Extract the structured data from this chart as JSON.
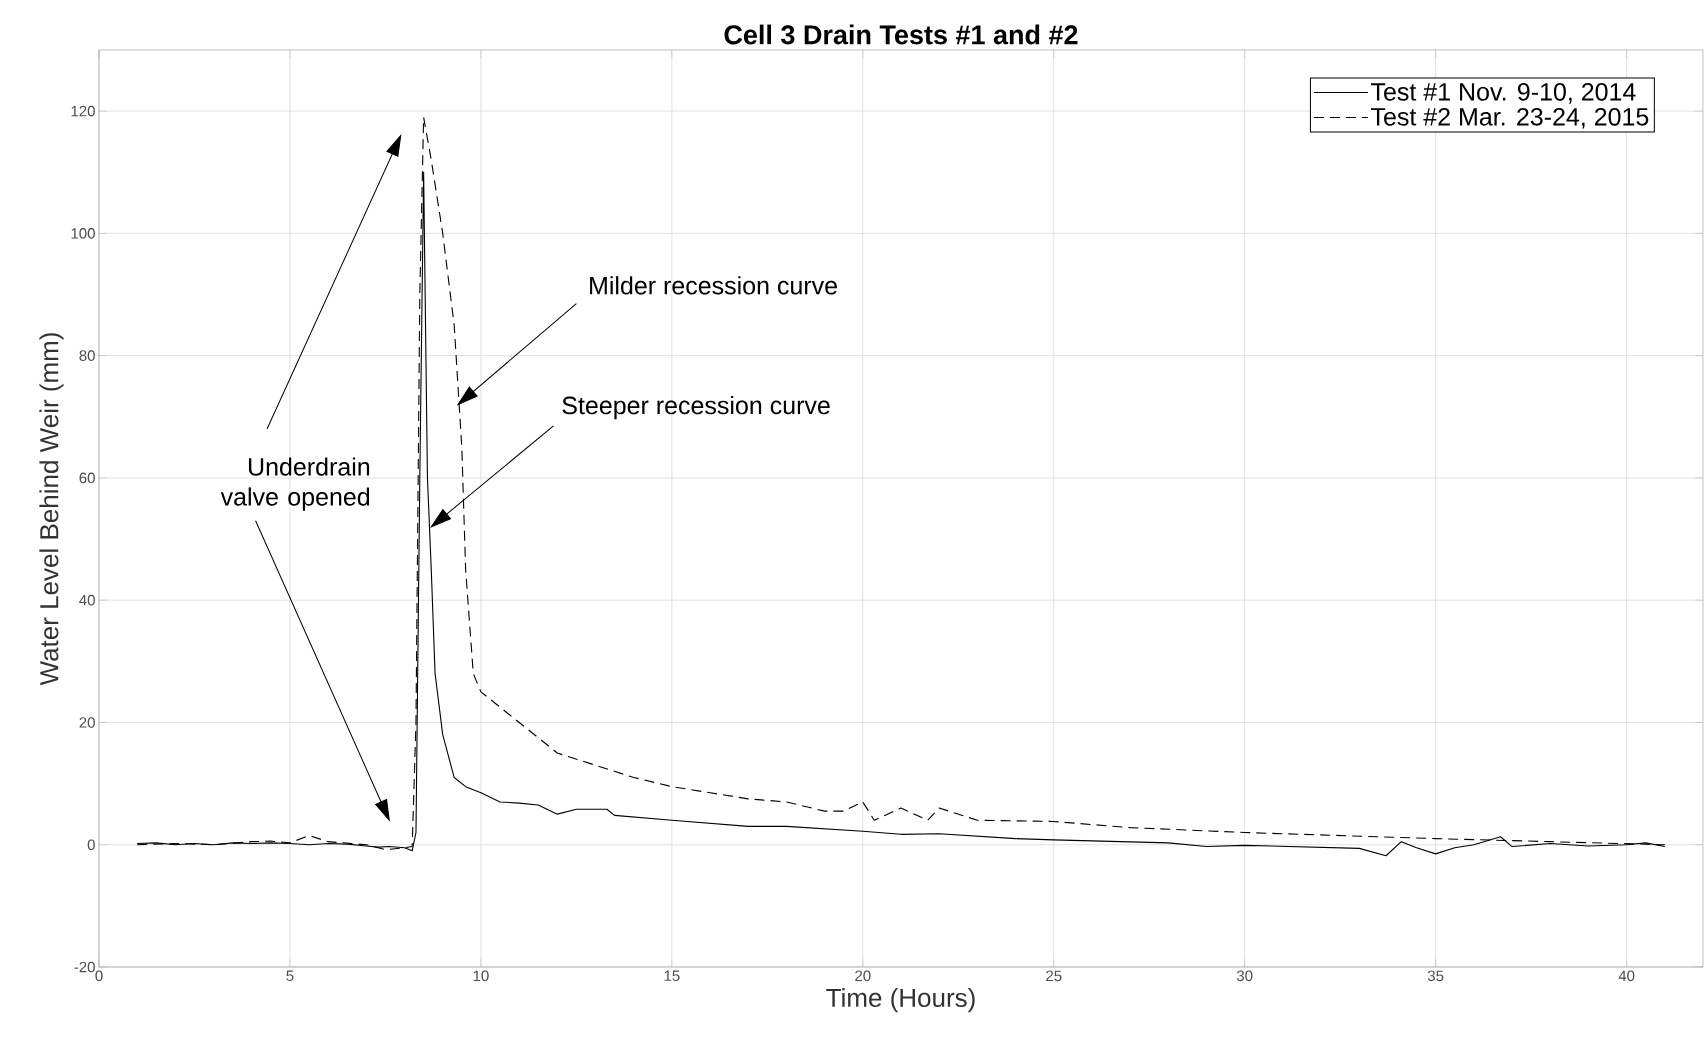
{
  "chart_data": {
    "type": "line",
    "title": "Cell 3 Drain Tests #1 and #2",
    "xlabel": "Time (Hours)",
    "ylabel": "Water Level Behind Weir (mm)",
    "xlim": [
      0,
      42
    ],
    "ylim": [
      -20,
      130
    ],
    "xticks": [
      0,
      5,
      10,
      15,
      20,
      25,
      30,
      35,
      40
    ],
    "yticks": [
      -20,
      0,
      20,
      40,
      60,
      80,
      100,
      120
    ],
    "grid": true,
    "legend": "top right",
    "series": [
      {
        "name": "Test #1 Nov. 9-10, 2014",
        "color": "#000000",
        "line_style": "solid",
        "x": [
          1,
          1.5,
          2,
          2.5,
          3,
          3.5,
          4,
          4.5,
          5,
          5.5,
          6,
          6.5,
          7,
          7.3,
          7.6,
          8,
          8.2,
          8.3,
          8.4,
          8.5,
          8.55,
          8.6,
          8.7,
          8.8,
          9.0,
          9.3,
          9.6,
          10,
          10.5,
          11,
          11.5,
          12,
          12.5,
          13.3,
          13.5,
          15,
          17,
          18,
          20,
          21,
          22,
          24,
          25,
          28,
          29,
          30,
          33,
          33.7,
          34.1,
          34.5,
          35,
          35.5,
          36,
          36.7,
          37,
          38,
          39,
          40,
          40.5,
          41
        ],
        "values": [
          0.2,
          0.3,
          0,
          0.2,
          0,
          0.3,
          0.2,
          0.3,
          0.2,
          0,
          0.2,
          0.1,
          -0.2,
          -0.4,
          -0.3,
          -0.5,
          -1,
          2,
          60,
          110,
          85,
          60,
          45,
          28,
          18,
          11,
          9.5,
          8.5,
          7,
          6.8,
          6.5,
          5,
          5.8,
          5.8,
          4.8,
          4,
          3,
          3,
          2.2,
          1.7,
          1.8,
          1,
          0.8,
          0.3,
          -0.3,
          -0.1,
          -0.6,
          -1.8,
          0.5,
          -0.5,
          -1.5,
          -0.5,
          0,
          1.3,
          -0.3,
          0.2,
          -0.2,
          0,
          0.3,
          -0.3
        ]
      },
      {
        "name": "Test #2 Mar. 23-24, 2015",
        "color": "#000000",
        "line_style": "dashed",
        "x": [
          1,
          2,
          3,
          4,
          4.5,
          5,
          5.5,
          6,
          7,
          7.5,
          8,
          8.2,
          8.3,
          8.4,
          8.5,
          8.7,
          9.0,
          9.3,
          9.5,
          9.6,
          9.8,
          10,
          11,
          12,
          13,
          14,
          15,
          16,
          17,
          18,
          19,
          19.5,
          20,
          20.3,
          21,
          21.7,
          22,
          23,
          25,
          27,
          30,
          35,
          38,
          41
        ],
        "values": [
          0,
          0.2,
          0,
          0.5,
          0.6,
          0.3,
          1.5,
          0.5,
          0,
          -0.8,
          -0.5,
          -0.3,
          20,
          90,
          119,
          112,
          100,
          85,
          65,
          45,
          28,
          25,
          20,
          15,
          13,
          11,
          9.5,
          8.5,
          7.5,
          7,
          5.5,
          5.5,
          7,
          4,
          6,
          4,
          6,
          4,
          3.8,
          2.8,
          2,
          1,
          0.5,
          0
        ]
      }
    ],
    "annotations": [
      "Underdrain valve opened",
      "Milder recession curve",
      "Steeper recession curve"
    ]
  }
}
